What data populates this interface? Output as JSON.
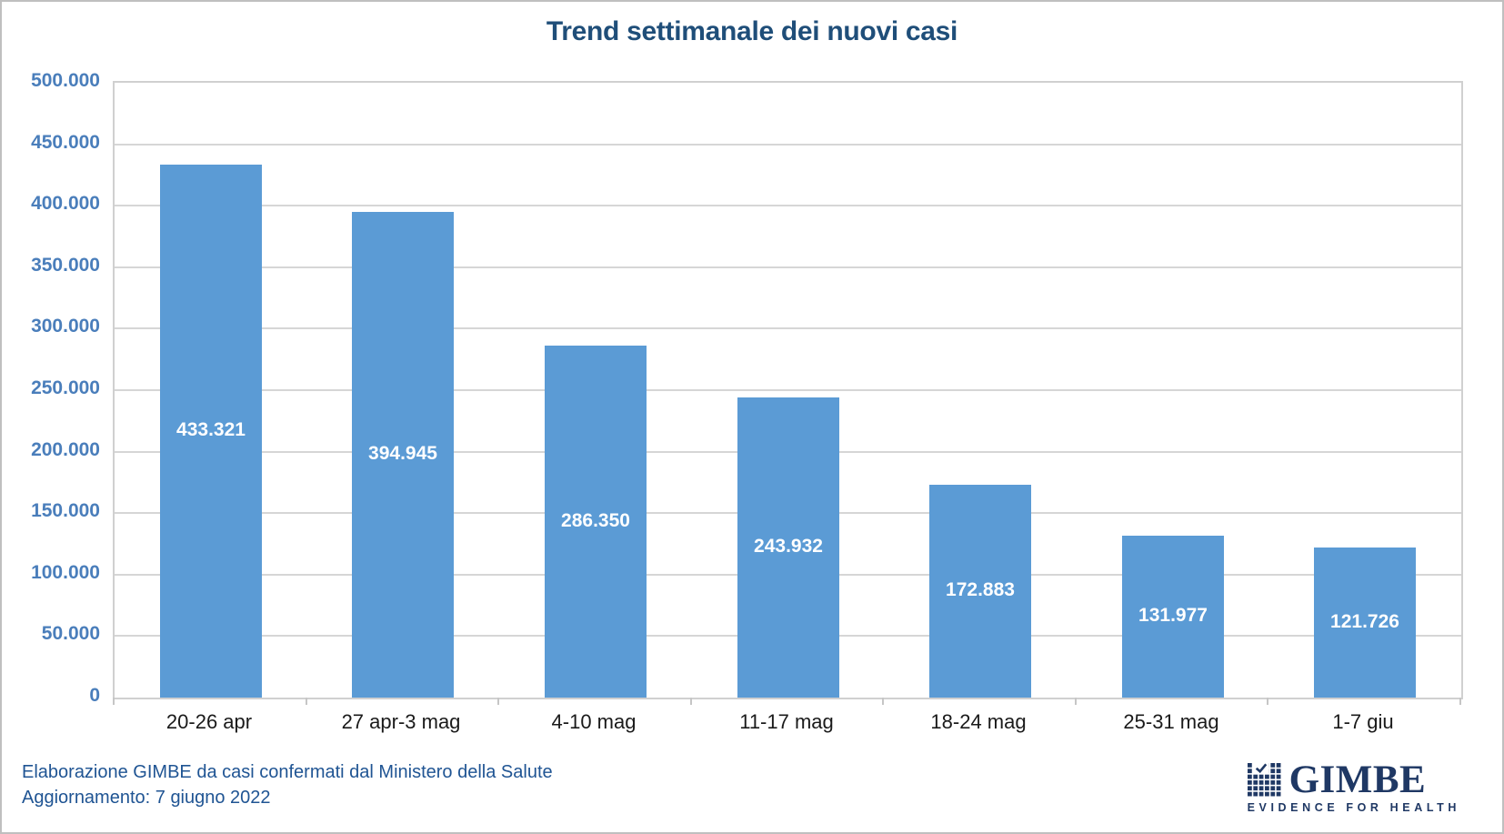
{
  "title": "Trend settimanale dei nuovi casi",
  "footer": {
    "line1": "Elaborazione GIMBE da casi confermati dal Ministero della Salute",
    "line2": "Aggiornamento: 7 giugno 2022"
  },
  "logo": {
    "name": "GIMBE",
    "tagline": "EVIDENCE FOR HEALTH",
    "icon": "gimbe-check-grid-icon"
  },
  "colors": {
    "bar": "#5B9BD5",
    "bar_label": "#FFFFFF",
    "title": "#1F4E79",
    "y_axis_label": "#4A7EBB",
    "x_axis_label": "#1A1A1A",
    "gridline": "#D6D6D6",
    "plot_border": "#D0D0D0",
    "footer_text": "#1F5493",
    "logo_navy": "#1F3864"
  },
  "chart_data": {
    "type": "bar",
    "title": "Trend settimanale dei nuovi casi",
    "xlabel": "",
    "ylabel": "",
    "grid": true,
    "legend": false,
    "categories": [
      "20-26 apr",
      "27 apr-3 mag",
      "4-10 mag",
      "11-17 mag",
      "18-24 mag",
      "25-31 mag",
      "1-7 giu"
    ],
    "values": [
      433321,
      394945,
      286350,
      243932,
      172883,
      131977,
      121726
    ],
    "value_labels": [
      "433.321",
      "394.945",
      "286.350",
      "243.932",
      "172.883",
      "131.977",
      "121.726"
    ],
    "ylim": [
      0,
      500000
    ],
    "ytick_step": 50000,
    "ytick_labels_top_down": [
      "500.000",
      "450.000",
      "400.000",
      "350.000",
      "300.000",
      "250.000",
      "200.000",
      "150.000",
      "100.000",
      "50.000",
      "0"
    ]
  }
}
